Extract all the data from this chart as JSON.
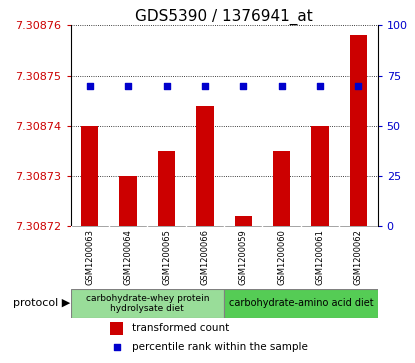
{
  "title": "GDS5390 / 1376941_at",
  "samples": [
    "GSM1200063",
    "GSM1200064",
    "GSM1200065",
    "GSM1200066",
    "GSM1200059",
    "GSM1200060",
    "GSM1200061",
    "GSM1200062"
  ],
  "bar_values": [
    7.30874,
    7.30873,
    7.308735,
    7.308744,
    7.308722,
    7.308735,
    7.30874,
    7.308758
  ],
  "percentile_values": [
    70,
    70,
    70,
    70,
    70,
    70,
    70,
    70
  ],
  "ylim_left": [
    7.30872,
    7.30876
  ],
  "ylim_right": [
    0,
    100
  ],
  "yticks_left": [
    7.30872,
    7.30873,
    7.30874,
    7.30875,
    7.30876
  ],
  "yticks_right": [
    0,
    25,
    50,
    75,
    100
  ],
  "protocols": [
    {
      "label": "carbohydrate-whey protein\nhydrolysate diet",
      "color": "#99dd99",
      "start": 0,
      "end": 4
    },
    {
      "label": "carbohydrate-amino acid diet",
      "color": "#55cc55",
      "start": 4,
      "end": 8
    }
  ],
  "bar_color": "#cc0000",
  "percentile_color": "#0000cc",
  "protocol_label": "protocol",
  "legend_bar": "transformed count",
  "legend_pct": "percentile rank within the sample",
  "sample_bg": "#d8d8d8",
  "plot_bg": "#ffffff",
  "title_fontsize": 11,
  "tick_fontsize": 8,
  "sample_fontsize": 6,
  "legend_fontsize": 7.5,
  "protocol_fontsize": 6.5
}
